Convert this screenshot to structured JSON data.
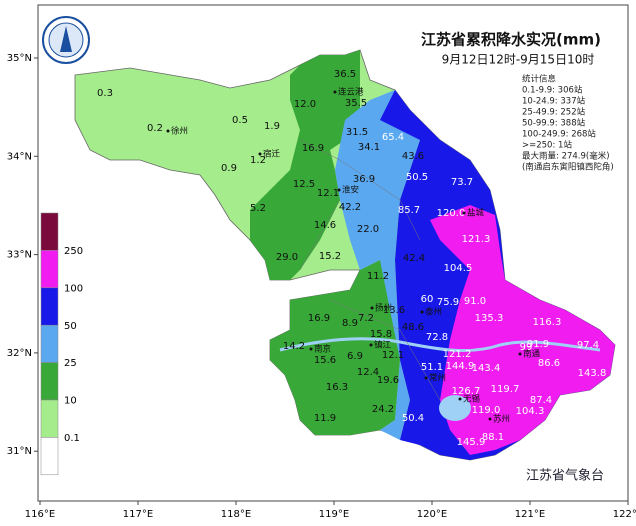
{
  "header": {
    "title": "江苏省累积降水实况(mm)",
    "subtitle": "9月12日12时-9月15日10时"
  },
  "stats": [
    "统计信息",
    "0.1-9.9: 306站",
    "10-24.9: 337站",
    "25-49.9: 252站",
    "50-99.9: 388站",
    "100-249.9: 268站",
    ">=250: 1站",
    "最大雨量: 274.9(毫米)",
    "(南通启东寅阳镇西陀角)"
  ],
  "legend": {
    "colors": [
      "#7a0a3c",
      "#f01cf0",
      "#1818e8",
      "#5aa8f0",
      "#38a838",
      "#a4ec8c",
      "#ffffff"
    ],
    "labels": [
      "250",
      "100",
      "50",
      "25",
      "10",
      "0.1"
    ]
  },
  "axes": {
    "xticks": [
      {
        "value": 116,
        "label": "116°E"
      },
      {
        "value": 117,
        "label": "117°E"
      },
      {
        "value": 118,
        "label": "118°E"
      },
      {
        "value": 119,
        "label": "119°E"
      },
      {
        "value": 120,
        "label": "120°E"
      },
      {
        "value": 121,
        "label": "121°E"
      },
      {
        "value": 122,
        "label": "122°E"
      }
    ],
    "yticks": [
      {
        "value": 35,
        "label": "35°N"
      },
      {
        "value": 34,
        "label": "34°N"
      },
      {
        "value": 33,
        "label": "33°N"
      },
      {
        "value": 32,
        "label": "32°N"
      },
      {
        "value": 31,
        "label": "31°N"
      }
    ]
  },
  "stations": [
    "0.3",
    "0.2",
    "0.5",
    "1.9",
    "12.0",
    "36.5",
    "35.5",
    "31.5",
    "65.4",
    "34.1",
    "43.6",
    "16.9",
    "1.2",
    "0.9",
    "50.5",
    "73.7",
    "36.9",
    "12.5",
    "12.1",
    "42.2",
    "5.2",
    "85.7",
    "120.0",
    "14.6",
    "22.0",
    "121.3",
    "29.0",
    "15.2",
    "42.4",
    "104.5",
    "11.2",
    "75.9",
    "91.0",
    "60",
    "16.9",
    "8.9",
    "7.2",
    "13.6",
    "48.6",
    "135.3",
    "116.3",
    "15.8",
    "72.8",
    "14.2",
    "15.6",
    "6.9",
    "12.1",
    "121.2",
    "91.9",
    "99",
    "97.4",
    "51.1",
    "144.9",
    "143.4",
    "86.6",
    "143.8",
    "12.4",
    "19.6",
    "16.3",
    "126.7",
    "119.7",
    "87.4",
    "119.0",
    "104.3",
    "24.2",
    "50.4",
    "11.9",
    "145.9",
    "88.1"
  ],
  "cities": [
    "徐州",
    "宿迁",
    "连云港",
    "淮安",
    "盐城",
    "扬州",
    "泰州",
    "南京",
    "镇江",
    "南通",
    "常州",
    "无锡",
    "苏州"
  ],
  "footer": "江苏省气象台"
}
